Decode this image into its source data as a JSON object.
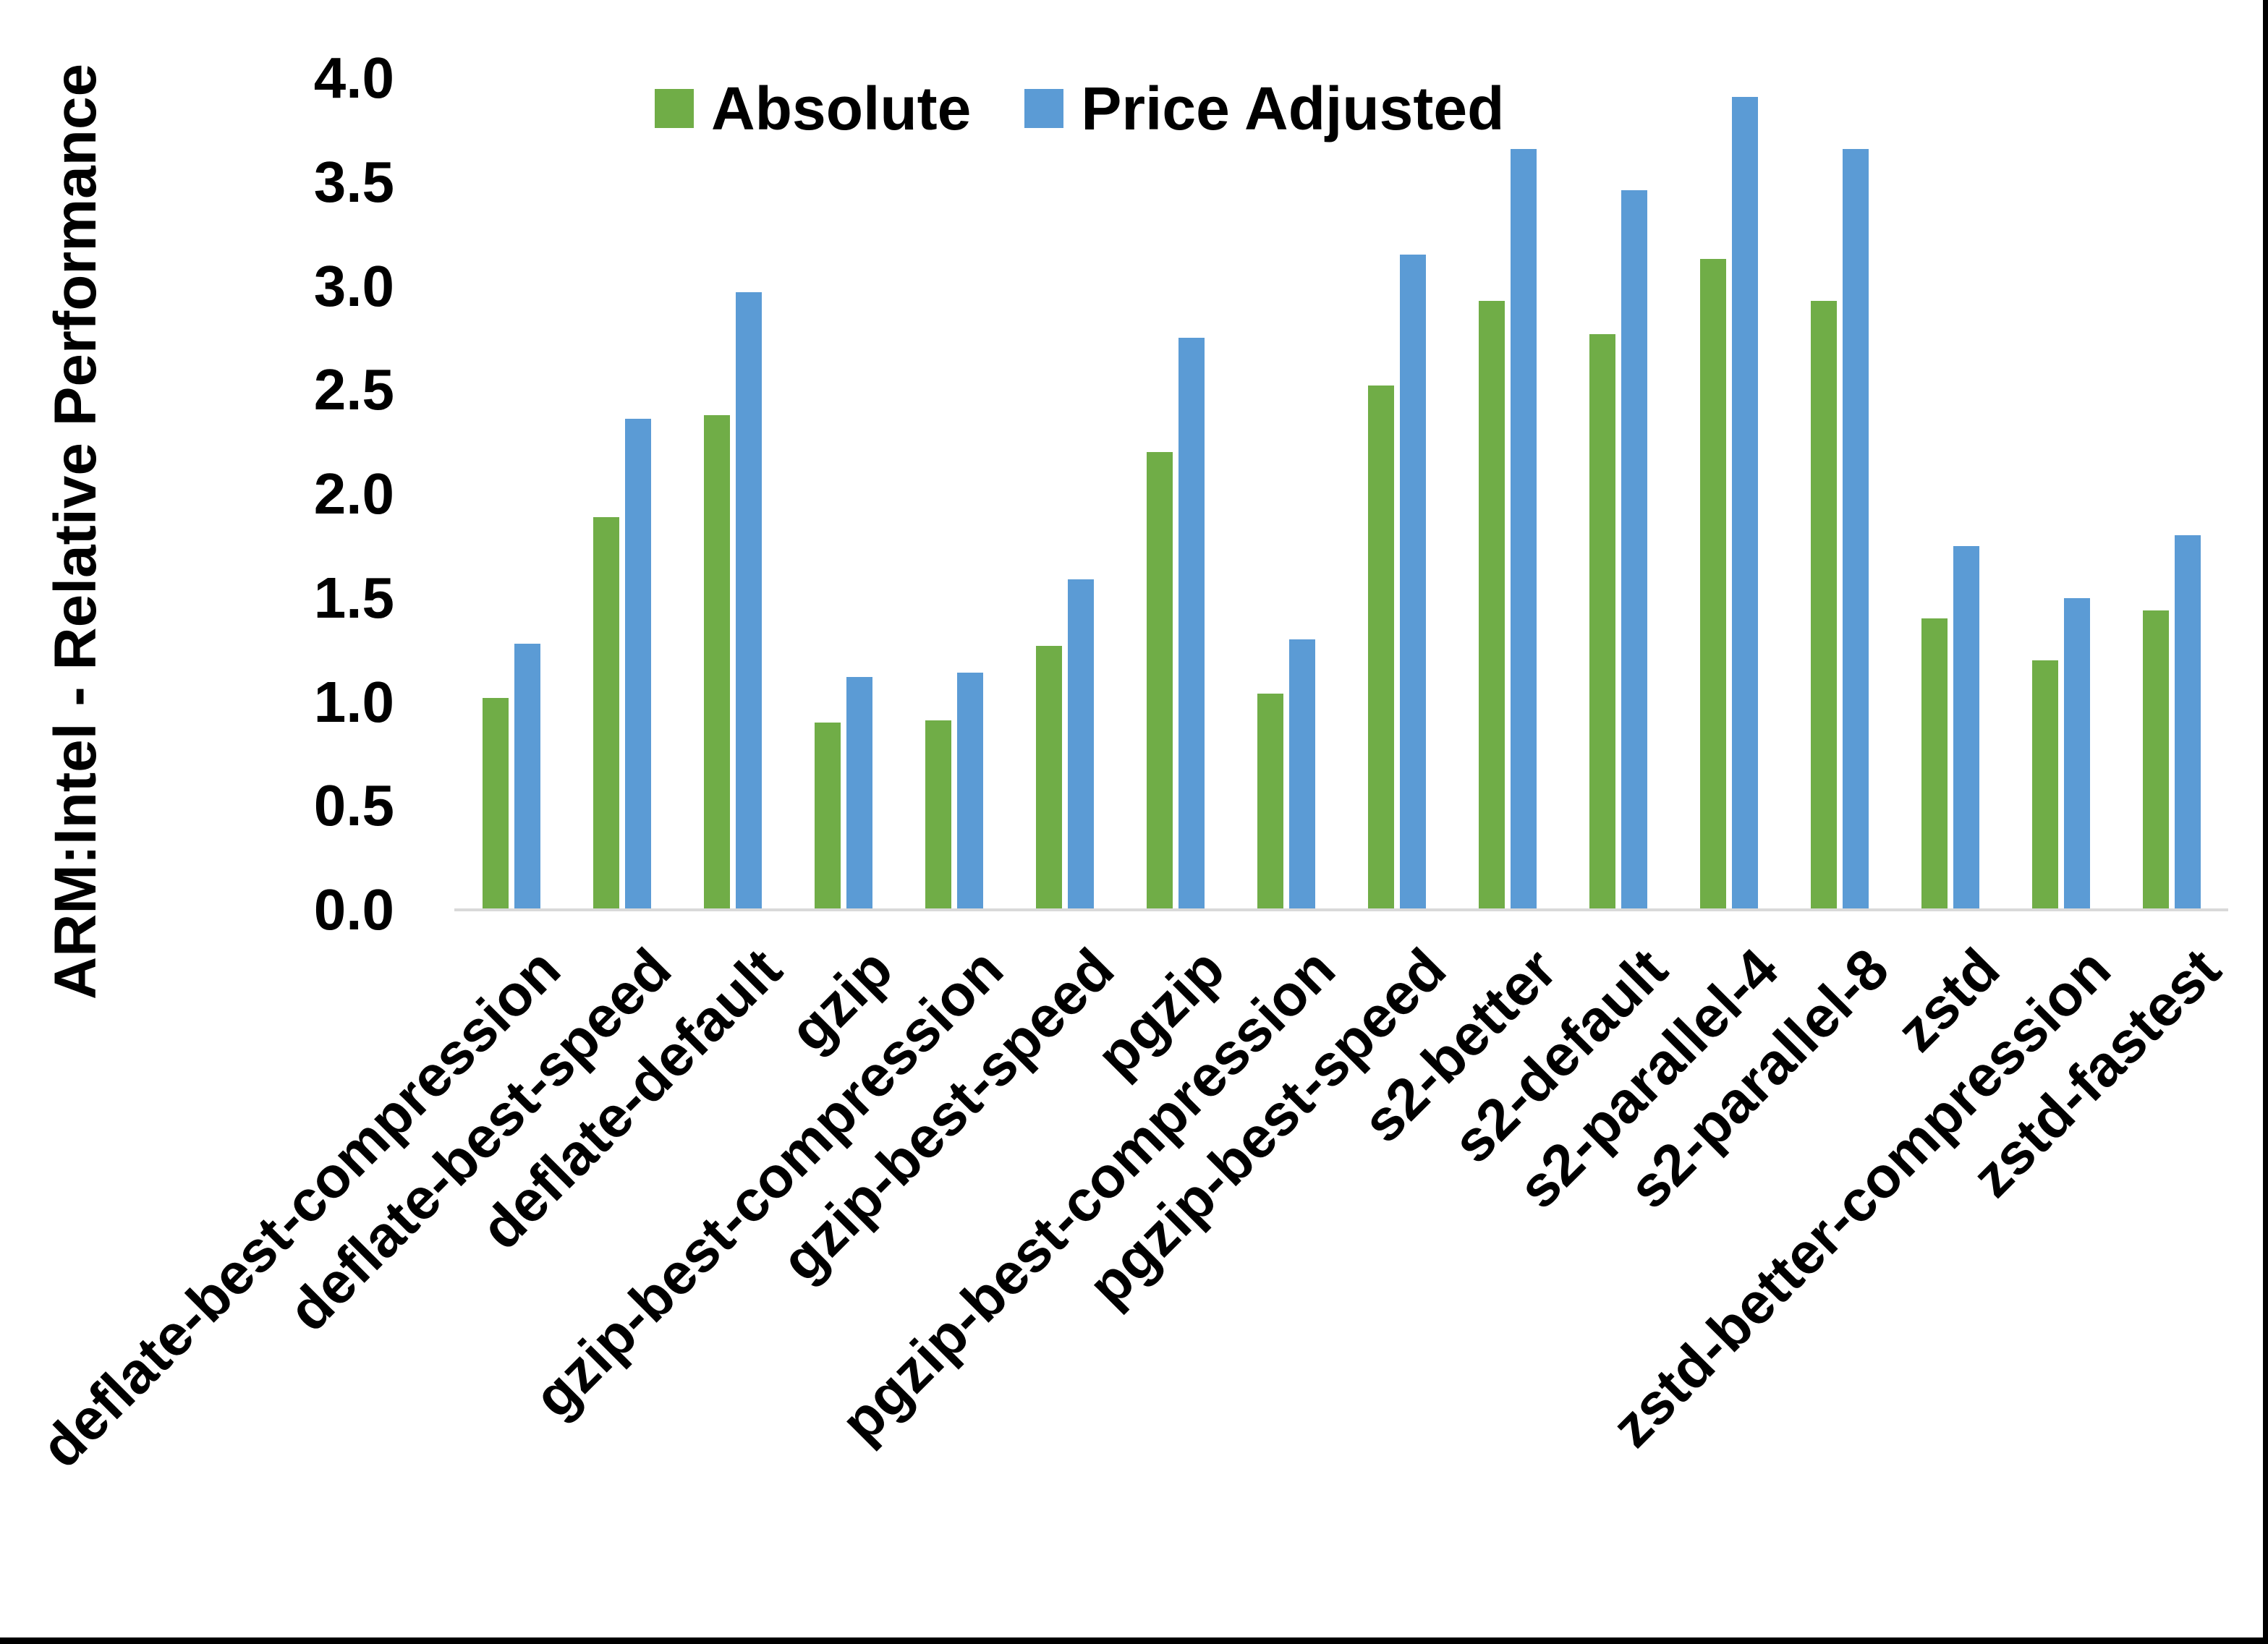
{
  "chart_data": {
    "type": "bar",
    "title": "",
    "ylabel": "ARM:Intel - Relative Performance",
    "xlabel": "",
    "categories": [
      "deflate-best-compression",
      "deflate-best-speed",
      "deflate-default",
      "gzip",
      "gzip-best-compression",
      "gzip-best-speed",
      "pgzip",
      "pgzip-best-compression",
      "pgzip-best-speed",
      "s2-better",
      "s2-default",
      "s2-parallel-4",
      "s2-parallel-8",
      "zstd",
      "zstd-better-compression",
      "zstd-fastest"
    ],
    "series": [
      {
        "name": "Absolute",
        "color": "#70AD47",
        "values": [
          1.02,
          1.89,
          2.38,
          0.9,
          0.91,
          1.27,
          2.2,
          1.04,
          2.52,
          2.93,
          2.77,
          3.13,
          2.93,
          1.4,
          1.2,
          1.44
        ]
      },
      {
        "name": "Price Adjusted",
        "color": "#5B9BD5",
        "values": [
          1.28,
          2.36,
          2.97,
          1.12,
          1.14,
          1.59,
          2.75,
          1.3,
          3.15,
          3.66,
          3.46,
          3.91,
          3.66,
          1.75,
          1.5,
          1.8
        ]
      }
    ],
    "ylim": [
      0.0,
      4.0
    ],
    "ytick_step": 0.5,
    "yticks": [
      "0.0",
      "0.5",
      "1.0",
      "1.5",
      "2.0",
      "2.5",
      "3.0",
      "3.5",
      "4.0"
    ],
    "grid": false,
    "legend_position": "top-center",
    "axis_line_color": "#d9d9d9",
    "text_color": "#000000",
    "background_color": "#ffffff",
    "window_edge_color": "#000000"
  }
}
